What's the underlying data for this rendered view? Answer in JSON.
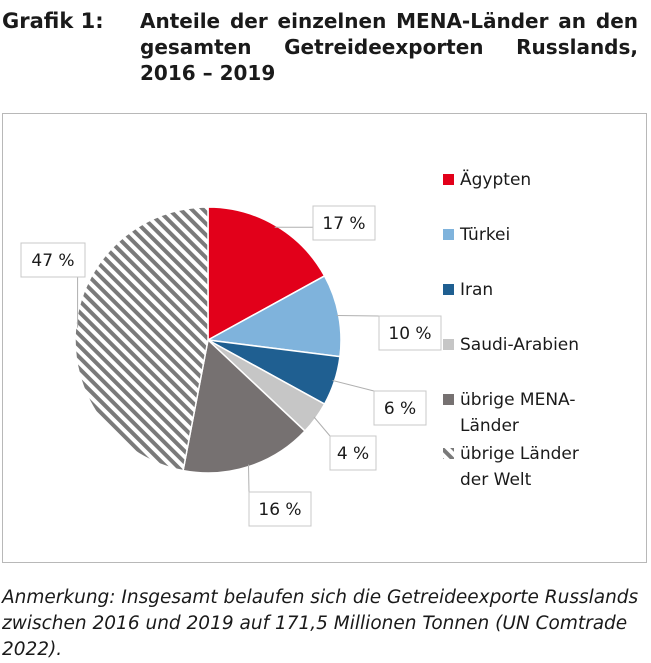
{
  "header": {
    "figure_label": "Grafik 1:",
    "title": "Anteile der einzelnen MENA-Länder an den gesamten Getreideexporten Russlands, 2016 – 2019"
  },
  "chart_data": {
    "type": "pie",
    "title": "Anteile der einzelnen MENA-Länder an den gesamten Getreideexporten Russlands, 2016 – 2019",
    "unit": "%",
    "categories": [
      "Ägypten",
      "Türkei",
      "Iran",
      "Saudi-Arabien",
      "übrige MENA-Länder",
      "übrige Länder der Welt"
    ],
    "values": [
      17,
      10,
      6,
      4,
      16,
      47
    ],
    "data_labels": [
      "17 %",
      "10 %",
      "6 %",
      "4 %",
      "16 %",
      "47 %"
    ],
    "colors": [
      "#e2001a",
      "#7fb3dc",
      "#1f5f91",
      "#c6c6c6",
      "#767171",
      "hatched"
    ],
    "legend_position": "right"
  },
  "note": "Anmerkung: Insgesamt belaufen sich die Getreideexporte Russlands zwischen 2016 und 2019 auf 171,5 Millionen Tonnen (UN Comtrade 2022)."
}
